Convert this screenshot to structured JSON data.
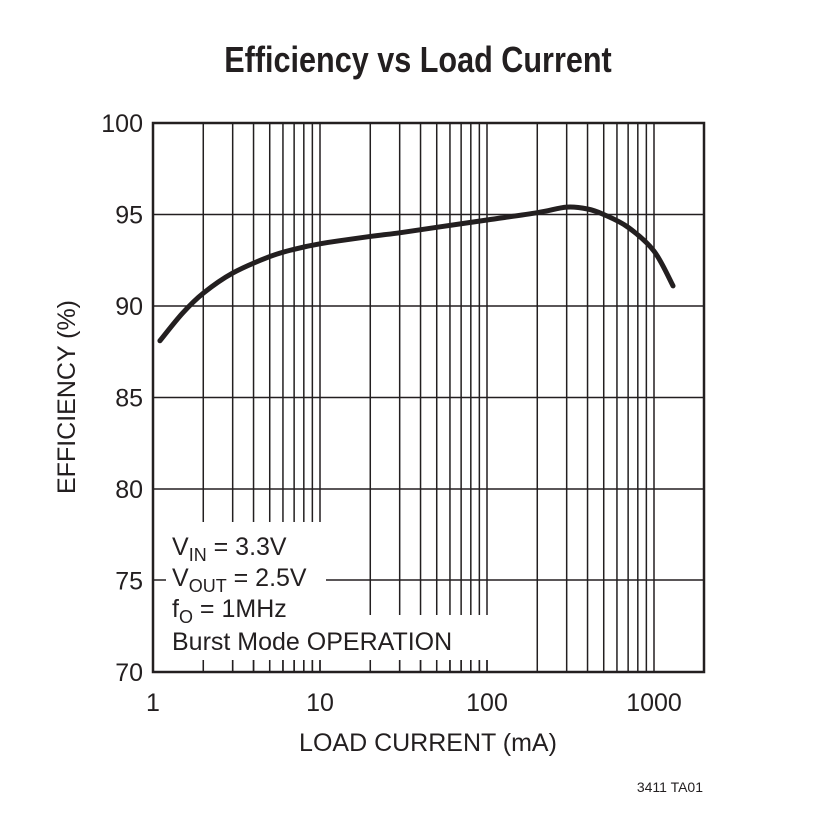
{
  "chart_data": {
    "type": "line",
    "title": "Efficiency vs Load Current",
    "xlabel": "LOAD CURRENT (mA)",
    "ylabel": "EFFICIENCY (%)",
    "x_scale": "log",
    "xlim": [
      1,
      2000
    ],
    "ylim": [
      70,
      100
    ],
    "grid": true,
    "x_ticks": [
      1,
      10,
      100,
      1000
    ],
    "x_tick_labels": [
      "1",
      "10",
      "100",
      "1000"
    ],
    "y_ticks": [
      70,
      75,
      80,
      85,
      90,
      95,
      100
    ],
    "y_tick_labels": [
      "70",
      "75",
      "80",
      "85",
      "90",
      "95",
      "100"
    ],
    "series": [
      {
        "x": [
          1.1,
          1.5,
          2,
          3,
          5,
          7,
          10,
          20,
          30,
          50,
          100,
          200,
          300,
          400,
          500,
          700,
          1000,
          1300
        ],
        "y": [
          88.1,
          89.6,
          90.7,
          91.8,
          92.7,
          93.1,
          93.4,
          93.8,
          94.0,
          94.3,
          94.7,
          95.1,
          95.4,
          95.3,
          95.0,
          94.3,
          93.0,
          91.1
        ]
      }
    ],
    "annotation": {
      "vin": {
        "main": "V",
        "sub": "IN",
        "rest": " = 3.3V"
      },
      "vout": {
        "main": "V",
        "sub": "OUT",
        "rest": " = 2.5V"
      },
      "fo": {
        "main": "f",
        "sub": "O",
        "rest": " = 1MHz"
      },
      "mode": "Burst Mode OPERATION"
    },
    "figure_id": "3411 TA01",
    "line_color": "#231f20"
  }
}
